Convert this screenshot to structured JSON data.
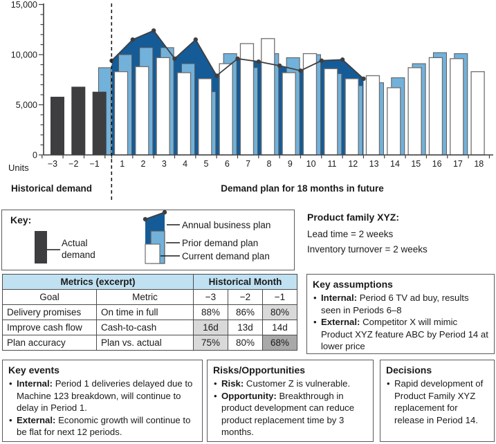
{
  "chart_data": {
    "type": "bar",
    "y_axis": {
      "label": "Units",
      "max": 15000,
      "minor_step": 1000,
      "ticks": [
        {
          "value": 0,
          "label": "0"
        },
        {
          "value": 5000,
          "label": "5,000"
        },
        {
          "value": 10000,
          "label": "10,000"
        },
        {
          "value": 15000,
          "label": "15,000"
        }
      ]
    },
    "sections": {
      "historical_label": "Historical demand",
      "future_label": "Demand plan for 18 months in future"
    },
    "historical": {
      "categories": [
        "−3",
        "−2",
        "−1"
      ],
      "actual_demand": [
        5800,
        6800,
        6300
      ],
      "prior_demand_plan": [
        null,
        null,
        8700
      ]
    },
    "future": {
      "categories": [
        "1",
        "2",
        "3",
        "4",
        "5",
        "6",
        "7",
        "8",
        "9",
        "10",
        "11",
        "12",
        "13",
        "14",
        "15",
        "16",
        "17",
        "18"
      ],
      "current_demand_plan": [
        8300,
        8800,
        9700,
        8200,
        7600,
        9100,
        11100,
        11600,
        8200,
        10100,
        8600,
        7600,
        7900,
        6700,
        8700,
        9700,
        9600,
        8300
      ],
      "prior_demand_plan": [
        10000,
        10700,
        10700,
        9100,
        6300,
        10100,
        8700,
        10100,
        9700,
        10000,
        8100,
        6900,
        7200,
        7700,
        9100,
        10200,
        10100,
        null
      ],
      "annual_business_plan": {
        "month_boundaries": [
          0.5,
          1.5,
          2.5,
          3.5,
          4.5,
          5.5,
          6.5,
          7.5,
          8.5,
          9.5,
          10.5,
          11.5,
          12.5
        ],
        "values": [
          9400,
          11500,
          12400,
          9600,
          11500,
          7900,
          9600,
          9300,
          8900,
          8400,
          9400,
          9500,
          7600
        ]
      }
    }
  },
  "key": {
    "title": "Key:",
    "actual_label": "Actual demand",
    "annual_label": "Annual business plan",
    "prior_label": "Prior demand plan",
    "current_label": "Current demand plan"
  },
  "product_family": {
    "title": "Product family XYZ:",
    "lines": [
      "Lead time = 2 weeks",
      "Inventory turnover = 2 weeks"
    ]
  },
  "metrics_table": {
    "header_groups": [
      "Metrics (excerpt)",
      "Historical Month"
    ],
    "columns": [
      "Goal",
      "Metric",
      "−3",
      "−2",
      "−1"
    ],
    "rows": [
      {
        "cells": [
          "Delivery promises",
          "On time in full",
          "88%",
          "86%",
          "80%"
        ]
      },
      {
        "cells": [
          "Improve cash flow",
          "Cash-to-cash",
          "16d",
          "13d",
          "14d"
        ]
      },
      {
        "cells": [
          "Plan accuracy",
          "Plan vs. actual",
          "75%",
          "80%",
          "68%"
        ]
      }
    ],
    "shaded_cells": [
      {
        "row": 0,
        "col": 4,
        "shade": "light"
      },
      {
        "row": 1,
        "col": 2,
        "shade": "light"
      },
      {
        "row": 2,
        "col": 2,
        "shade": "light"
      },
      {
        "row": 2,
        "col": 4,
        "shade": "dark"
      }
    ]
  },
  "key_assumptions": {
    "title": "Key assumptions",
    "items": [
      {
        "lead": "Internal:",
        "text": "Period 6 TV ad buy, results seen in Periods 6–8"
      },
      {
        "lead": "External:",
        "text": "Competitor X will mimic Product XYZ feature ABC by Period 14 at lower price"
      }
    ]
  },
  "key_events": {
    "title": "Key events",
    "items": [
      {
        "lead": "Internal:",
        "text": "Period 1 deliveries delayed due to Machine 123 breakdown, will continue to delay in Period 1."
      },
      {
        "lead": "External:",
        "text": "Economic growth will continue to be flat for next 12 periods."
      }
    ]
  },
  "risks_opportunities": {
    "title": "Risks/Opportunities",
    "items": [
      {
        "lead": "Risk:",
        "text": "Customer Z is vulnerable."
      },
      {
        "lead": "Opportunity:",
        "text": "Breakthrough in product development can reduce product replacement time by 3 months."
      }
    ]
  },
  "decisions": {
    "title": "Decisions",
    "items": [
      {
        "lead": "",
        "text": "Rapid development of Product Family XYZ replacement for release in Period 14."
      }
    ]
  },
  "colors": {
    "actual": "#3e3e40",
    "prior_plan": "#72b1da",
    "current_plan": "#ffffff",
    "business_plan_fill": "#155b97",
    "line": "#3f3f3f",
    "bar_outline": "#6e6e6e",
    "table_header": "#bfe1f2",
    "shade_light": "#d9d9d9",
    "shade_dark": "#a9a9a9"
  }
}
